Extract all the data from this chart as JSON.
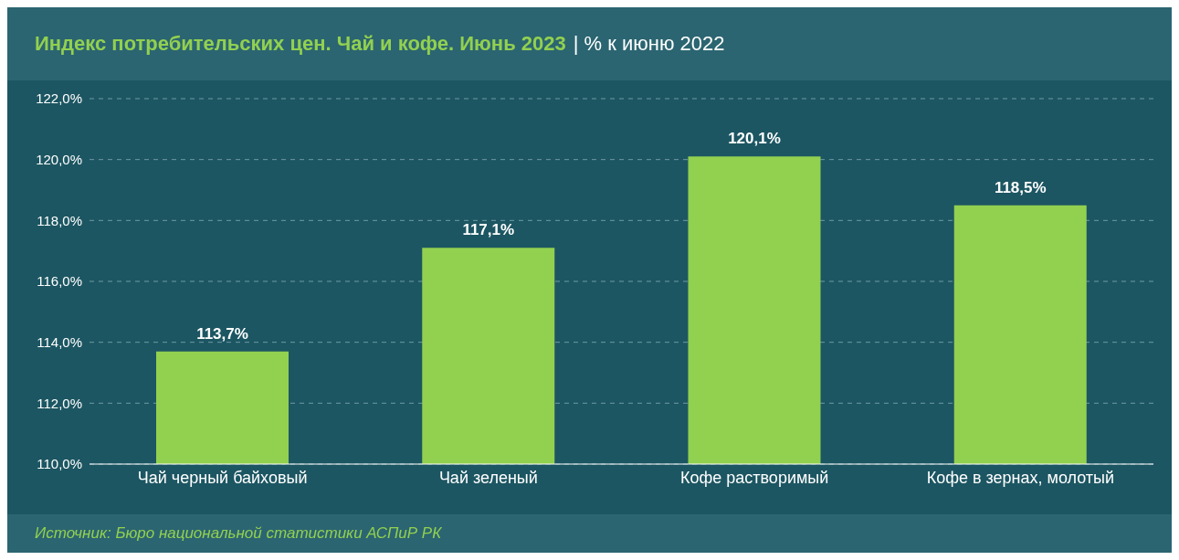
{
  "chart_data": {
    "type": "bar",
    "title": "Индекс потребительских цен. Чай и кофе. Июнь 2023",
    "subtitle": "| % к июню 2022",
    "categories": [
      "Чай черный байховый",
      "Чай зеленый",
      "Кофе растворимый",
      "Кофе в зернах, молотый"
    ],
    "values": [
      113.7,
      117.1,
      120.1,
      118.5
    ],
    "value_labels": [
      "113,7%",
      "117,1%",
      "120,1%",
      "118,5%"
    ],
    "color": "#92d050",
    "ylim": [
      110,
      122
    ],
    "yticks": [
      {
        "value": 110,
        "label": "110,0%"
      },
      {
        "value": 112,
        "label": "112,0%"
      },
      {
        "value": 114,
        "label": "114,0%"
      },
      {
        "value": 116,
        "label": "116,0%"
      },
      {
        "value": 118,
        "label": "118,0%"
      },
      {
        "value": 120,
        "label": "120,0%"
      },
      {
        "value": 122,
        "label": "122,0%"
      }
    ],
    "grid": "y",
    "annotations": [
      "Источник: Бюро национальной статистики АСПиР РК"
    ]
  }
}
